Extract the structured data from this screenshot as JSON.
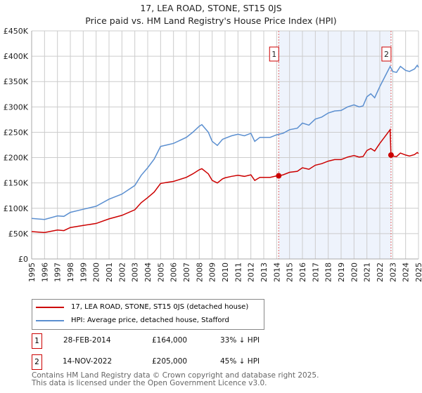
{
  "title": "17, LEA ROAD, STONE, ST15 0JS",
  "subtitle": "Price paid vs. HM Land Registry's House Price Index (HPI)",
  "chart_data": {
    "type": "line",
    "title": "17, LEA ROAD, STONE, ST15 0JS",
    "subtitle": "Price paid vs. HM Land Registry's House Price Index (HPI)",
    "xlim": [
      1995,
      2025
    ],
    "ylim": [
      0,
      450000
    ],
    "yticks": [
      0,
      50000,
      100000,
      150000,
      200000,
      250000,
      300000,
      350000,
      400000,
      450000
    ],
    "ytick_labels": [
      "£0",
      "£50K",
      "£100K",
      "£150K",
      "£200K",
      "£250K",
      "£300K",
      "£350K",
      "£400K",
      "£450K"
    ],
    "xticks": [
      1995,
      1996,
      1997,
      1998,
      1999,
      2000,
      2001,
      2002,
      2003,
      2004,
      2005,
      2006,
      2007,
      2008,
      2009,
      2010,
      2011,
      2012,
      2013,
      2014,
      2015,
      2016,
      2017,
      2018,
      2019,
      2020,
      2021,
      2022,
      2023,
      2024,
      2025
    ],
    "grid": true,
    "shaded_range": [
      2014.16,
      2022.87
    ],
    "series": [
      {
        "name": "17, LEA ROAD, STONE, ST15 0JS (detached house)",
        "color": "#cc0000",
        "x": [
          1995,
          1996,
          1997,
          1997.5,
          1998,
          1999,
          2000,
          2001,
          2002,
          2003,
          2003.5,
          2004,
          2004.5,
          2005,
          2005.5,
          2006,
          2007,
          2007.5,
          2008,
          2008.2,
          2008.7,
          2009,
          2009.4,
          2009.8,
          2010,
          2010.5,
          2011,
          2011.5,
          2012,
          2012.3,
          2012.7,
          2013,
          2013.5,
          2014,
          2014.16,
          2014.5,
          2015,
          2015.6,
          2016,
          2016.5,
          2017,
          2017.5,
          2018,
          2018.5,
          2019,
          2019.5,
          2020,
          2020.4,
          2020.7,
          2021,
          2021.3,
          2021.6,
          2022,
          2022.3,
          2022.8,
          2022.87,
          2023,
          2023.3,
          2023.6,
          2024,
          2024.3,
          2024.7,
          2024.9,
          2025
        ],
        "y": [
          54000,
          52000,
          57000,
          56000,
          62000,
          66000,
          70000,
          79000,
          86000,
          97000,
          111000,
          121000,
          132000,
          149000,
          151000,
          153000,
          161000,
          168000,
          176000,
          178000,
          168000,
          155000,
          150000,
          158000,
          160000,
          163000,
          165000,
          163000,
          166000,
          155000,
          161000,
          161000,
          161000,
          164000,
          164000,
          166000,
          171000,
          173000,
          180000,
          177000,
          185000,
          188000,
          193000,
          196000,
          196000,
          201000,
          204000,
          201000,
          202000,
          214000,
          218000,
          213000,
          228000,
          238000,
          255000,
          205000,
          203000,
          202000,
          209000,
          205000,
          203000,
          206000,
          210000,
          208000
        ]
      },
      {
        "name": "HPI: Average price, detached house, Stafford",
        "color": "#5b8fd0",
        "x": [
          1995,
          1996,
          1997,
          1997.5,
          1998,
          1999,
          2000,
          2001,
          2002,
          2003,
          2003.5,
          2004,
          2004.5,
          2005,
          2005.5,
          2006,
          2007,
          2007.5,
          2008,
          2008.2,
          2008.7,
          2009,
          2009.4,
          2009.8,
          2010,
          2010.5,
          2011,
          2011.5,
          2012,
          2012.3,
          2012.7,
          2013,
          2013.5,
          2014,
          2014.5,
          2015,
          2015.6,
          2016,
          2016.5,
          2017,
          2017.5,
          2018,
          2018.5,
          2019,
          2019.5,
          2020,
          2020.4,
          2020.7,
          2021,
          2021.3,
          2021.6,
          2022,
          2022.3,
          2022.8,
          2023,
          2023.3,
          2023.6,
          2024,
          2024.3,
          2024.7,
          2024.9,
          2025
        ],
        "y": [
          80000,
          78000,
          85000,
          84000,
          92000,
          98000,
          104000,
          118000,
          128000,
          145000,
          165000,
          180000,
          197000,
          222000,
          225000,
          228000,
          240000,
          250000,
          262000,
          265000,
          250000,
          232000,
          224000,
          236000,
          238000,
          243000,
          246000,
          243000,
          248000,
          232000,
          240000,
          240000,
          240000,
          245000,
          248000,
          255000,
          258000,
          268000,
          264000,
          276000,
          280000,
          288000,
          292000,
          293000,
          300000,
          304000,
          300000,
          302000,
          320000,
          326000,
          318000,
          340000,
          355000,
          380000,
          370000,
          368000,
          380000,
          372000,
          370000,
          375000,
          382000,
          378000
        ]
      }
    ],
    "annotations": [
      {
        "label": "1",
        "x": 2014.16,
        "y": 164000
      },
      {
        "label": "2",
        "x": 2022.87,
        "y": 205000
      }
    ]
  },
  "legend": [
    {
      "label": "17, LEA ROAD, STONE, ST15 0JS (detached house)",
      "color": "#cc0000"
    },
    {
      "label": "HPI: Average price, detached house, Stafford",
      "color": "#5b8fd0"
    }
  ],
  "transactions": [
    {
      "num": "1",
      "date": "28-FEB-2014",
      "price": "£164,000",
      "hpi": "33% ↓ HPI"
    },
    {
      "num": "2",
      "date": "14-NOV-2022",
      "price": "£205,000",
      "hpi": "45% ↓ HPI"
    }
  ],
  "footer": {
    "line1": "Contains HM Land Registry data © Crown copyright and database right 2025.",
    "line2": "This data is licensed under the Open Government Licence v3.0."
  }
}
